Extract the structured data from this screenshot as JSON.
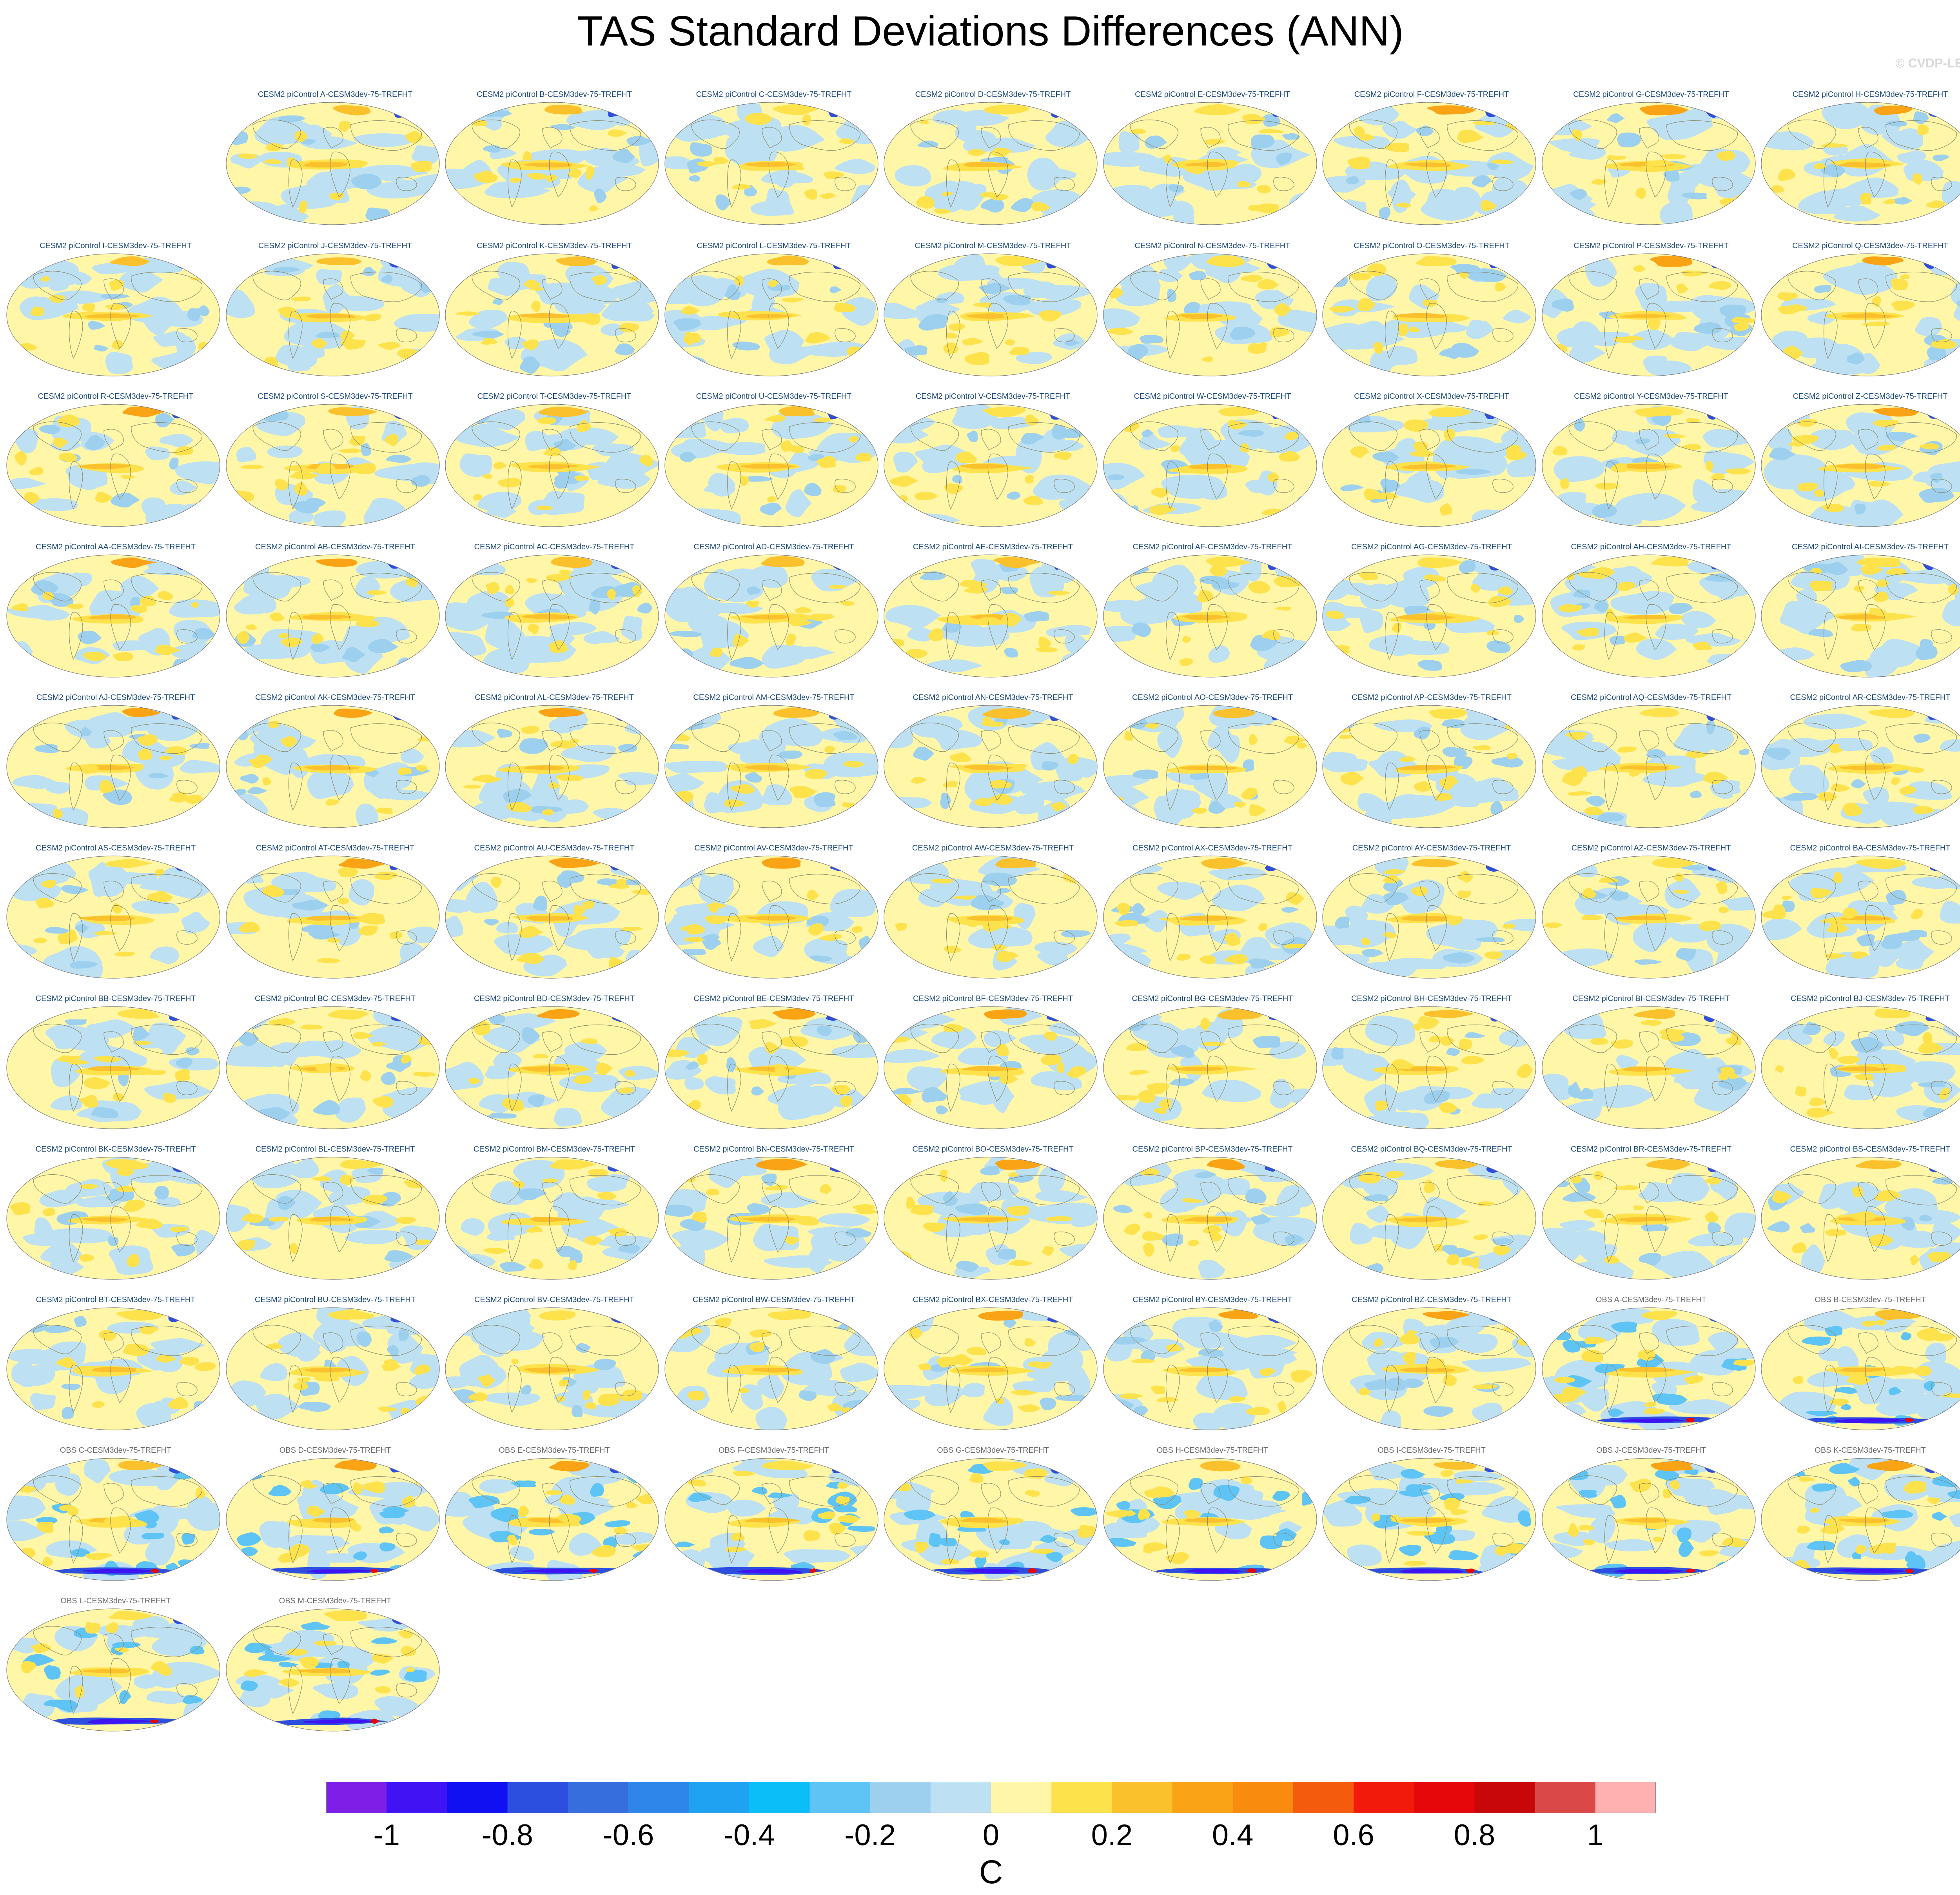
{
  "title": "TAS Standard Deviations Differences (ANN)",
  "copyright": "© CVDP-LE",
  "panels": [
    {
      "label": "CESM2 piControl A-CESM3dev-75-TREFHT",
      "kind": "model"
    },
    {
      "label": "CESM2 piControl B-CESM3dev-75-TREFHT",
      "kind": "model"
    },
    {
      "label": "CESM2 piControl C-CESM3dev-75-TREFHT",
      "kind": "model"
    },
    {
      "label": "CESM2 piControl D-CESM3dev-75-TREFHT",
      "kind": "model"
    },
    {
      "label": "CESM2 piControl E-CESM3dev-75-TREFHT",
      "kind": "model"
    },
    {
      "label": "CESM2 piControl F-CESM3dev-75-TREFHT",
      "kind": "model"
    },
    {
      "label": "CESM2 piControl G-CESM3dev-75-TREFHT",
      "kind": "model"
    },
    {
      "label": "CESM2 piControl H-CESM3dev-75-TREFHT",
      "kind": "model"
    },
    {
      "label": "CESM2 piControl I-CESM3dev-75-TREFHT",
      "kind": "model"
    },
    {
      "label": "CESM2 piControl J-CESM3dev-75-TREFHT",
      "kind": "model"
    },
    {
      "label": "CESM2 piControl K-CESM3dev-75-TREFHT",
      "kind": "model"
    },
    {
      "label": "CESM2 piControl L-CESM3dev-75-TREFHT",
      "kind": "model"
    },
    {
      "label": "CESM2 piControl M-CESM3dev-75-TREFHT",
      "kind": "model"
    },
    {
      "label": "CESM2 piControl N-CESM3dev-75-TREFHT",
      "kind": "model"
    },
    {
      "label": "CESM2 piControl O-CESM3dev-75-TREFHT",
      "kind": "model"
    },
    {
      "label": "CESM2 piControl P-CESM3dev-75-TREFHT",
      "kind": "model"
    },
    {
      "label": "CESM2 piControl Q-CESM3dev-75-TREFHT",
      "kind": "model"
    },
    {
      "label": "CESM2 piControl R-CESM3dev-75-TREFHT",
      "kind": "model"
    },
    {
      "label": "CESM2 piControl S-CESM3dev-75-TREFHT",
      "kind": "model"
    },
    {
      "label": "CESM2 piControl T-CESM3dev-75-TREFHT",
      "kind": "model"
    },
    {
      "label": "CESM2 piControl U-CESM3dev-75-TREFHT",
      "kind": "model"
    },
    {
      "label": "CESM2 piControl V-CESM3dev-75-TREFHT",
      "kind": "model"
    },
    {
      "label": "CESM2 piControl W-CESM3dev-75-TREFHT",
      "kind": "model"
    },
    {
      "label": "CESM2 piControl X-CESM3dev-75-TREFHT",
      "kind": "model"
    },
    {
      "label": "CESM2 piControl Y-CESM3dev-75-TREFHT",
      "kind": "model"
    },
    {
      "label": "CESM2 piControl Z-CESM3dev-75-TREFHT",
      "kind": "model"
    },
    {
      "label": "CESM2 piControl AA-CESM3dev-75-TREFHT",
      "kind": "model"
    },
    {
      "label": "CESM2 piControl AB-CESM3dev-75-TREFHT",
      "kind": "model"
    },
    {
      "label": "CESM2 piControl AC-CESM3dev-75-TREFHT",
      "kind": "model"
    },
    {
      "label": "CESM2 piControl AD-CESM3dev-75-TREFHT",
      "kind": "model"
    },
    {
      "label": "CESM2 piControl AE-CESM3dev-75-TREFHT",
      "kind": "model"
    },
    {
      "label": "CESM2 piControl AF-CESM3dev-75-TREFHT",
      "kind": "model"
    },
    {
      "label": "CESM2 piControl AG-CESM3dev-75-TREFHT",
      "kind": "model"
    },
    {
      "label": "CESM2 piControl AH-CESM3dev-75-TREFHT",
      "kind": "model"
    },
    {
      "label": "CESM2 piControl AI-CESM3dev-75-TREFHT",
      "kind": "model"
    },
    {
      "label": "CESM2 piControl AJ-CESM3dev-75-TREFHT",
      "kind": "model"
    },
    {
      "label": "CESM2 piControl AK-CESM3dev-75-TREFHT",
      "kind": "model"
    },
    {
      "label": "CESM2 piControl AL-CESM3dev-75-TREFHT",
      "kind": "model"
    },
    {
      "label": "CESM2 piControl AM-CESM3dev-75-TREFHT",
      "kind": "model"
    },
    {
      "label": "CESM2 piControl AN-CESM3dev-75-TREFHT",
      "kind": "model"
    },
    {
      "label": "CESM2 piControl AO-CESM3dev-75-TREFHT",
      "kind": "model"
    },
    {
      "label": "CESM2 piControl AP-CESM3dev-75-TREFHT",
      "kind": "model"
    },
    {
      "label": "CESM2 piControl AQ-CESM3dev-75-TREFHT",
      "kind": "model"
    },
    {
      "label": "CESM2 piControl AR-CESM3dev-75-TREFHT",
      "kind": "model"
    },
    {
      "label": "CESM2 piControl AS-CESM3dev-75-TREFHT",
      "kind": "model"
    },
    {
      "label": "CESM2 piControl AT-CESM3dev-75-TREFHT",
      "kind": "model"
    },
    {
      "label": "CESM2 piControl AU-CESM3dev-75-TREFHT",
      "kind": "model"
    },
    {
      "label": "CESM2 piControl AV-CESM3dev-75-TREFHT",
      "kind": "model"
    },
    {
      "label": "CESM2 piControl AW-CESM3dev-75-TREFHT",
      "kind": "model"
    },
    {
      "label": "CESM2 piControl AX-CESM3dev-75-TREFHT",
      "kind": "model"
    },
    {
      "label": "CESM2 piControl AY-CESM3dev-75-TREFHT",
      "kind": "model"
    },
    {
      "label": "CESM2 piControl AZ-CESM3dev-75-TREFHT",
      "kind": "model"
    },
    {
      "label": "CESM2 piControl BA-CESM3dev-75-TREFHT",
      "kind": "model"
    },
    {
      "label": "CESM2 piControl BB-CESM3dev-75-TREFHT",
      "kind": "model"
    },
    {
      "label": "CESM2 piControl BC-CESM3dev-75-TREFHT",
      "kind": "model"
    },
    {
      "label": "CESM2 piControl BD-CESM3dev-75-TREFHT",
      "kind": "model"
    },
    {
      "label": "CESM2 piControl BE-CESM3dev-75-TREFHT",
      "kind": "model"
    },
    {
      "label": "CESM2 piControl BF-CESM3dev-75-TREFHT",
      "kind": "model"
    },
    {
      "label": "CESM2 piControl BG-CESM3dev-75-TREFHT",
      "kind": "model"
    },
    {
      "label": "CESM2 piControl BH-CESM3dev-75-TREFHT",
      "kind": "model"
    },
    {
      "label": "CESM2 piControl BI-CESM3dev-75-TREFHT",
      "kind": "model"
    },
    {
      "label": "CESM2 piControl BJ-CESM3dev-75-TREFHT",
      "kind": "model"
    },
    {
      "label": "CESM2 piControl BK-CESM3dev-75-TREFHT",
      "kind": "model"
    },
    {
      "label": "CESM2 piControl BL-CESM3dev-75-TREFHT",
      "kind": "model"
    },
    {
      "label": "CESM2 piControl BM-CESM3dev-75-TREFHT",
      "kind": "model"
    },
    {
      "label": "CESM2 piControl BN-CESM3dev-75-TREFHT",
      "kind": "model"
    },
    {
      "label": "CESM2 piControl BO-CESM3dev-75-TREFHT",
      "kind": "model"
    },
    {
      "label": "CESM2 piControl BP-CESM3dev-75-TREFHT",
      "kind": "model"
    },
    {
      "label": "CESM2 piControl BQ-CESM3dev-75-TREFHT",
      "kind": "model"
    },
    {
      "label": "CESM2 piControl BR-CESM3dev-75-TREFHT",
      "kind": "model"
    },
    {
      "label": "CESM2 piControl BS-CESM3dev-75-TREFHT",
      "kind": "model"
    },
    {
      "label": "CESM2 piControl BT-CESM3dev-75-TREFHT",
      "kind": "model"
    },
    {
      "label": "CESM2 piControl BU-CESM3dev-75-TREFHT",
      "kind": "model"
    },
    {
      "label": "CESM2 piControl BV-CESM3dev-75-TREFHT",
      "kind": "model"
    },
    {
      "label": "CESM2 piControl BW-CESM3dev-75-TREFHT",
      "kind": "model"
    },
    {
      "label": "CESM2 piControl BX-CESM3dev-75-TREFHT",
      "kind": "model"
    },
    {
      "label": "CESM2 piControl BY-CESM3dev-75-TREFHT",
      "kind": "model"
    },
    {
      "label": "CESM2 piControl BZ-CESM3dev-75-TREFHT",
      "kind": "model"
    },
    {
      "label": "OBS A-CESM3dev-75-TREFHT",
      "kind": "obs"
    },
    {
      "label": "OBS B-CESM3dev-75-TREFHT",
      "kind": "obs"
    },
    {
      "label": "OBS C-CESM3dev-75-TREFHT",
      "kind": "obs"
    },
    {
      "label": "OBS D-CESM3dev-75-TREFHT",
      "kind": "obs"
    },
    {
      "label": "OBS E-CESM3dev-75-TREFHT",
      "kind": "obs"
    },
    {
      "label": "OBS F-CESM3dev-75-TREFHT",
      "kind": "obs"
    },
    {
      "label": "OBS G-CESM3dev-75-TREFHT",
      "kind": "obs"
    },
    {
      "label": "OBS H-CESM3dev-75-TREFHT",
      "kind": "obs"
    },
    {
      "label": "OBS I-CESM3dev-75-TREFHT",
      "kind": "obs"
    },
    {
      "label": "OBS J-CESM3dev-75-TREFHT",
      "kind": "obs"
    },
    {
      "label": "OBS K-CESM3dev-75-TREFHT",
      "kind": "obs"
    },
    {
      "label": "OBS L-CESM3dev-75-TREFHT",
      "kind": "obs"
    },
    {
      "label": "OBS M-CESM3dev-75-TREFHT",
      "kind": "obs"
    }
  ],
  "colorbar": {
    "units": "C",
    "ticks": [
      {
        "value": -1,
        "text": "-1"
      },
      {
        "value": -0.8,
        "text": "-0.8"
      },
      {
        "value": -0.6,
        "text": "-0.6"
      },
      {
        "value": -0.4,
        "text": "-0.4"
      },
      {
        "value": -0.2,
        "text": "-0.2"
      },
      {
        "value": 0,
        "text": "0"
      },
      {
        "value": 0.2,
        "text": "0.2"
      },
      {
        "value": 0.4,
        "text": "0.4"
      },
      {
        "value": 0.6,
        "text": "0.6"
      },
      {
        "value": 0.8,
        "text": "0.8"
      },
      {
        "value": 1,
        "text": "1"
      }
    ],
    "boundaries": [
      -1,
      -0.9,
      -0.8,
      -0.7,
      -0.6,
      -0.5,
      -0.4,
      -0.3,
      -0.2,
      -0.1,
      0,
      0.1,
      0.2,
      0.3,
      0.4,
      0.5,
      0.6,
      0.7,
      0.8,
      0.9,
      1
    ],
    "colors": [
      "#7e1fe8",
      "#3f13f3",
      "#1010f2",
      "#2d4fe0",
      "#366ede",
      "#2f86ea",
      "#20a2f3",
      "#0bbef7",
      "#5ec4f6",
      "#9dd0ef",
      "#bde0f3",
      "#fff6a8",
      "#fde24c",
      "#fbc12c",
      "#faa315",
      "#f98b0e",
      "#f55b0d",
      "#f21a0a",
      "#e5070a",
      "#c80808",
      "#db4848",
      "#ffb0b0"
    ]
  }
}
